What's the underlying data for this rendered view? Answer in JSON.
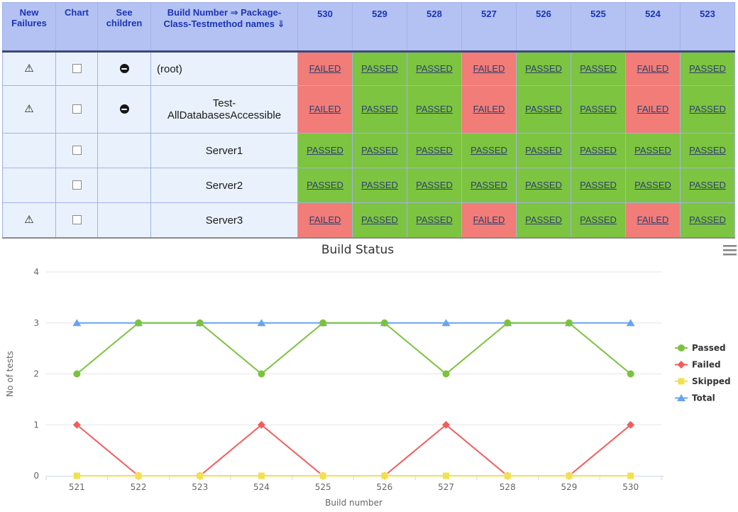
{
  "table": {
    "headers": {
      "new_failures": "New Failures",
      "chart": "Chart",
      "see_children": "See children",
      "name": "Build Number ⇒ Package-Class-Testmethod names ⇓"
    },
    "build_numbers": [
      "530",
      "529",
      "528",
      "527",
      "526",
      "525",
      "524",
      "523"
    ],
    "rows": [
      {
        "name": "(root)",
        "align": "left",
        "new_failures": true,
        "chart_checkbox": false,
        "see_children": true,
        "height": "row-h38",
        "results": [
          "FAILED",
          "PASSED",
          "PASSED",
          "FAILED",
          "PASSED",
          "PASSED",
          "FAILED",
          "PASSED"
        ]
      },
      {
        "name": "Test-AllDatabasesAccessible",
        "align": "center",
        "new_failures": true,
        "chart_checkbox": false,
        "see_children": true,
        "height": "row-h58",
        "results": [
          "FAILED",
          "PASSED",
          "PASSED",
          "FAILED",
          "PASSED",
          "PASSED",
          "FAILED",
          "PASSED"
        ]
      },
      {
        "name": "Server1",
        "align": "center",
        "new_failures": false,
        "chart_checkbox": false,
        "see_children": false,
        "height": "row-h40",
        "results": [
          "PASSED",
          "PASSED",
          "PASSED",
          "PASSED",
          "PASSED",
          "PASSED",
          "PASSED",
          "PASSED"
        ]
      },
      {
        "name": "Server2",
        "align": "center",
        "new_failures": false,
        "chart_checkbox": false,
        "see_children": false,
        "height": "row-h40",
        "results": [
          "PASSED",
          "PASSED",
          "PASSED",
          "PASSED",
          "PASSED",
          "PASSED",
          "PASSED",
          "PASSED"
        ]
      },
      {
        "name": "Server3",
        "align": "center",
        "new_failures": true,
        "chart_checkbox": false,
        "see_children": false,
        "height": "row-h40",
        "results": [
          "FAILED",
          "PASSED",
          "PASSED",
          "FAILED",
          "PASSED",
          "PASSED",
          "FAILED",
          "PASSED"
        ]
      }
    ],
    "colors": {
      "header_bg": "#b3c2f2",
      "header_text": "#1c34b3",
      "header_separator": "#3d4977",
      "cell_border": "#a3b1e9",
      "row_bg": "#e9f2fc",
      "passed_bg": "#7dc440",
      "failed_bg": "#f17c78",
      "link_text": "#2e3f6e"
    },
    "icons": {
      "new_failures": "⚠",
      "see_children": "filled-circle-minus"
    }
  },
  "chart_data": {
    "type": "line",
    "title": "Build Status",
    "xlabel": "Build number",
    "ylabel": "No of tests",
    "x": [
      521,
      522,
      523,
      524,
      525,
      526,
      527,
      528,
      529,
      530
    ],
    "ylim": [
      0,
      4
    ],
    "yticks": [
      0,
      1,
      2,
      3,
      4
    ],
    "grid": true,
    "legend_position": "right",
    "series": [
      {
        "name": "Passed",
        "color": "#7cc23f",
        "marker": "circle",
        "values": [
          2,
          3,
          3,
          2,
          3,
          3,
          2,
          3,
          3,
          2
        ]
      },
      {
        "name": "Failed",
        "color": "#f15d5d",
        "marker": "diamond",
        "values": [
          1,
          0,
          0,
          1,
          0,
          0,
          1,
          0,
          0,
          1
        ]
      },
      {
        "name": "Skipped",
        "color": "#f2e14c",
        "marker": "square",
        "values": [
          0,
          0,
          0,
          0,
          0,
          0,
          0,
          0,
          0,
          0
        ]
      },
      {
        "name": "Total",
        "color": "#68a4f1",
        "marker": "triangle",
        "values": [
          3,
          3,
          3,
          3,
          3,
          3,
          3,
          3,
          3,
          3
        ]
      }
    ],
    "draw_order": [
      "Total",
      "Failed",
      "Skipped",
      "Passed"
    ],
    "colors": {
      "grid": "#e6e6e6",
      "axis_line": "#ccd6eb",
      "tick_label": "#666666",
      "title": "#333333",
      "legend_text": "#333333",
      "menu_icon": "#888888"
    }
  }
}
